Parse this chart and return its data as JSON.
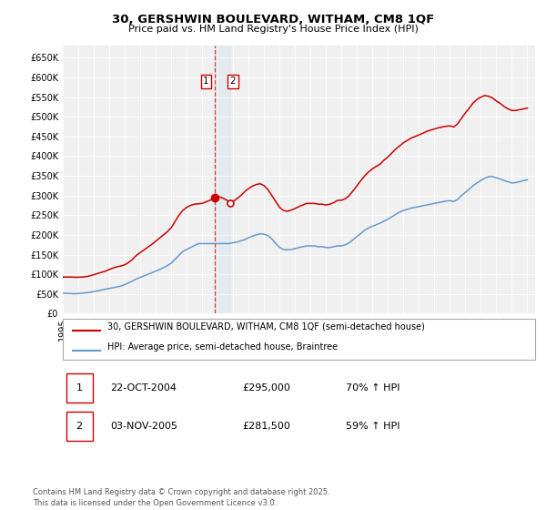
{
  "title": "30, GERSHWIN BOULEVARD, WITHAM, CM8 1QF",
  "subtitle": "Price paid vs. HM Land Registry's House Price Index (HPI)",
  "legend_line1": "30, GERSHWIN BOULEVARD, WITHAM, CM8 1QF (semi-detached house)",
  "legend_line2": "HPI: Average price, semi-detached house, Braintree",
  "property_color": "#cc0000",
  "hpi_color": "#6699cc",
  "table_rows": [
    {
      "num": "1",
      "date": "22-OCT-2004",
      "price": "£295,000",
      "hpi": "70% ↑ HPI"
    },
    {
      "num": "2",
      "date": "03-NOV-2005",
      "price": "£281,500",
      "hpi": "59% ↑ HPI"
    }
  ],
  "footer": "Contains HM Land Registry data © Crown copyright and database right 2025.\nThis data is licensed under the Open Government Licence v3.0.",
  "ylim": [
    0,
    680000
  ],
  "yticks": [
    0,
    50000,
    100000,
    150000,
    200000,
    250000,
    300000,
    350000,
    400000,
    450000,
    500000,
    550000,
    600000,
    650000
  ],
  "ytick_labels": [
    "£0",
    "£50K",
    "£100K",
    "£150K",
    "£200K",
    "£250K",
    "£300K",
    "£350K",
    "£400K",
    "£450K",
    "£500K",
    "£550K",
    "£600K",
    "£650K"
  ],
  "xlim_start": 1995.0,
  "xlim_end": 2025.5,
  "sale1_x": 2004.81,
  "sale1_y": 295000,
  "sale2_x": 2005.84,
  "sale2_y": 281500,
  "vshade_x1": 2004.81,
  "vshade_x2": 2005.84,
  "hpi_data": [
    [
      1995.0,
      52000
    ],
    [
      1995.25,
      51500
    ],
    [
      1995.5,
      51000
    ],
    [
      1995.75,
      50500
    ],
    [
      1996.0,
      51000
    ],
    [
      1996.25,
      52000
    ],
    [
      1996.5,
      53000
    ],
    [
      1996.75,
      54000
    ],
    [
      1997.0,
      56000
    ],
    [
      1997.25,
      58000
    ],
    [
      1997.5,
      60000
    ],
    [
      1997.75,
      62000
    ],
    [
      1998.0,
      64000
    ],
    [
      1998.25,
      66000
    ],
    [
      1998.5,
      68000
    ],
    [
      1998.75,
      70000
    ],
    [
      1999.0,
      74000
    ],
    [
      1999.25,
      78000
    ],
    [
      1999.5,
      83000
    ],
    [
      1999.75,
      88000
    ],
    [
      2000.0,
      92000
    ],
    [
      2000.25,
      96000
    ],
    [
      2000.5,
      100000
    ],
    [
      2000.75,
      104000
    ],
    [
      2001.0,
      108000
    ],
    [
      2001.25,
      112000
    ],
    [
      2001.5,
      117000
    ],
    [
      2001.75,
      122000
    ],
    [
      2002.0,
      128000
    ],
    [
      2002.25,
      138000
    ],
    [
      2002.5,
      148000
    ],
    [
      2002.75,
      158000
    ],
    [
      2003.0,
      163000
    ],
    [
      2003.25,
      168000
    ],
    [
      2003.5,
      173000
    ],
    [
      2003.75,
      178000
    ],
    [
      2004.0,
      178000
    ],
    [
      2004.25,
      178000
    ],
    [
      2004.5,
      178000
    ],
    [
      2004.75,
      178000
    ],
    [
      2005.0,
      178000
    ],
    [
      2005.25,
      178000
    ],
    [
      2005.5,
      178000
    ],
    [
      2005.75,
      178000
    ],
    [
      2006.0,
      180000
    ],
    [
      2006.25,
      182000
    ],
    [
      2006.5,
      185000
    ],
    [
      2006.75,
      188000
    ],
    [
      2007.0,
      193000
    ],
    [
      2007.25,
      197000
    ],
    [
      2007.5,
      200000
    ],
    [
      2007.75,
      203000
    ],
    [
      2008.0,
      202000
    ],
    [
      2008.25,
      198000
    ],
    [
      2008.5,
      190000
    ],
    [
      2008.75,
      178000
    ],
    [
      2009.0,
      168000
    ],
    [
      2009.25,
      163000
    ],
    [
      2009.5,
      162000
    ],
    [
      2009.75,
      163000
    ],
    [
      2010.0,
      165000
    ],
    [
      2010.25,
      168000
    ],
    [
      2010.5,
      170000
    ],
    [
      2010.75,
      172000
    ],
    [
      2011.0,
      172000
    ],
    [
      2011.25,
      172000
    ],
    [
      2011.5,
      170000
    ],
    [
      2011.75,
      170000
    ],
    [
      2012.0,
      168000
    ],
    [
      2012.25,
      168000
    ],
    [
      2012.5,
      170000
    ],
    [
      2012.75,
      172000
    ],
    [
      2013.0,
      172000
    ],
    [
      2013.25,
      175000
    ],
    [
      2013.5,
      180000
    ],
    [
      2013.75,
      188000
    ],
    [
      2014.0,
      196000
    ],
    [
      2014.25,
      204000
    ],
    [
      2014.5,
      212000
    ],
    [
      2014.75,
      218000
    ],
    [
      2015.0,
      222000
    ],
    [
      2015.25,
      226000
    ],
    [
      2015.5,
      230000
    ],
    [
      2015.75,
      235000
    ],
    [
      2016.0,
      240000
    ],
    [
      2016.25,
      246000
    ],
    [
      2016.5,
      252000
    ],
    [
      2016.75,
      258000
    ],
    [
      2017.0,
      262000
    ],
    [
      2017.25,
      265000
    ],
    [
      2017.5,
      268000
    ],
    [
      2017.75,
      270000
    ],
    [
      2018.0,
      272000
    ],
    [
      2018.25,
      274000
    ],
    [
      2018.5,
      276000
    ],
    [
      2018.75,
      278000
    ],
    [
      2019.0,
      280000
    ],
    [
      2019.25,
      282000
    ],
    [
      2019.5,
      284000
    ],
    [
      2019.75,
      286000
    ],
    [
      2020.0,
      287000
    ],
    [
      2020.25,
      285000
    ],
    [
      2020.5,
      290000
    ],
    [
      2020.75,
      300000
    ],
    [
      2021.0,
      308000
    ],
    [
      2021.25,
      316000
    ],
    [
      2021.5,
      325000
    ],
    [
      2021.75,
      332000
    ],
    [
      2022.0,
      338000
    ],
    [
      2022.25,
      344000
    ],
    [
      2022.5,
      348000
    ],
    [
      2022.75,
      348000
    ],
    [
      2023.0,
      345000
    ],
    [
      2023.25,
      342000
    ],
    [
      2023.5,
      338000
    ],
    [
      2023.75,
      335000
    ],
    [
      2024.0,
      332000
    ],
    [
      2024.25,
      333000
    ],
    [
      2024.5,
      335000
    ],
    [
      2024.75,
      338000
    ],
    [
      2025.0,
      340000
    ]
  ],
  "property_data": [
    [
      1995.0,
      93000
    ],
    [
      1995.25,
      93000
    ],
    [
      1995.5,
      93000
    ],
    [
      1995.75,
      92500
    ],
    [
      1996.0,
      92500
    ],
    [
      1996.25,
      93000
    ],
    [
      1996.5,
      94000
    ],
    [
      1996.75,
      96000
    ],
    [
      1997.0,
      99000
    ],
    [
      1997.25,
      102000
    ],
    [
      1997.5,
      105000
    ],
    [
      1997.75,
      108000
    ],
    [
      1998.0,
      112000
    ],
    [
      1998.25,
      116000
    ],
    [
      1998.5,
      119000
    ],
    [
      1998.75,
      121000
    ],
    [
      1999.0,
      124000
    ],
    [
      1999.25,
      130000
    ],
    [
      1999.5,
      138000
    ],
    [
      1999.75,
      148000
    ],
    [
      2000.0,
      155000
    ],
    [
      2000.25,
      162000
    ],
    [
      2000.5,
      169000
    ],
    [
      2000.75,
      176000
    ],
    [
      2001.0,
      184000
    ],
    [
      2001.25,
      192000
    ],
    [
      2001.5,
      200000
    ],
    [
      2001.75,
      208000
    ],
    [
      2002.0,
      218000
    ],
    [
      2002.25,
      234000
    ],
    [
      2002.5,
      250000
    ],
    [
      2002.75,
      262000
    ],
    [
      2003.0,
      270000
    ],
    [
      2003.25,
      275000
    ],
    [
      2003.5,
      278000
    ],
    [
      2003.75,
      279000
    ],
    [
      2004.0,
      280000
    ],
    [
      2004.25,
      284000
    ],
    [
      2004.5,
      288000
    ],
    [
      2004.75,
      292000
    ],
    [
      2004.81,
      295000
    ],
    [
      2005.0,
      298000
    ],
    [
      2005.25,
      295000
    ],
    [
      2005.5,
      290000
    ],
    [
      2005.75,
      285000
    ],
    [
      2005.84,
      281500
    ],
    [
      2006.0,
      285000
    ],
    [
      2006.25,
      292000
    ],
    [
      2006.5,
      300000
    ],
    [
      2006.75,
      310000
    ],
    [
      2007.0,
      318000
    ],
    [
      2007.25,
      324000
    ],
    [
      2007.5,
      328000
    ],
    [
      2007.75,
      330000
    ],
    [
      2008.0,
      325000
    ],
    [
      2008.25,
      315000
    ],
    [
      2008.5,
      300000
    ],
    [
      2008.75,
      285000
    ],
    [
      2009.0,
      270000
    ],
    [
      2009.25,
      262000
    ],
    [
      2009.5,
      260000
    ],
    [
      2009.75,
      263000
    ],
    [
      2010.0,
      267000
    ],
    [
      2010.25,
      272000
    ],
    [
      2010.5,
      276000
    ],
    [
      2010.75,
      280000
    ],
    [
      2011.0,
      280000
    ],
    [
      2011.25,
      280000
    ],
    [
      2011.5,
      278000
    ],
    [
      2011.75,
      278000
    ],
    [
      2012.0,
      276000
    ],
    [
      2012.25,
      278000
    ],
    [
      2012.5,
      282000
    ],
    [
      2012.75,
      288000
    ],
    [
      2013.0,
      288000
    ],
    [
      2013.25,
      292000
    ],
    [
      2013.5,
      300000
    ],
    [
      2013.75,
      312000
    ],
    [
      2014.0,
      325000
    ],
    [
      2014.25,
      338000
    ],
    [
      2014.5,
      350000
    ],
    [
      2014.75,
      360000
    ],
    [
      2015.0,
      368000
    ],
    [
      2015.25,
      374000
    ],
    [
      2015.5,
      380000
    ],
    [
      2015.75,
      390000
    ],
    [
      2016.0,
      398000
    ],
    [
      2016.25,
      408000
    ],
    [
      2016.5,
      418000
    ],
    [
      2016.75,
      426000
    ],
    [
      2017.0,
      434000
    ],
    [
      2017.25,
      440000
    ],
    [
      2017.5,
      446000
    ],
    [
      2017.75,
      450000
    ],
    [
      2018.0,
      454000
    ],
    [
      2018.25,
      458000
    ],
    [
      2018.5,
      463000
    ],
    [
      2018.75,
      466000
    ],
    [
      2019.0,
      469000
    ],
    [
      2019.25,
      472000
    ],
    [
      2019.5,
      474000
    ],
    [
      2019.75,
      476000
    ],
    [
      2020.0,
      477000
    ],
    [
      2020.25,
      474000
    ],
    [
      2020.5,
      482000
    ],
    [
      2020.75,
      496000
    ],
    [
      2021.0,
      510000
    ],
    [
      2021.25,
      522000
    ],
    [
      2021.5,
      535000
    ],
    [
      2021.75,
      544000
    ],
    [
      2022.0,
      550000
    ],
    [
      2022.25,
      554000
    ],
    [
      2022.5,
      552000
    ],
    [
      2022.75,
      548000
    ],
    [
      2023.0,
      540000
    ],
    [
      2023.25,
      534000
    ],
    [
      2023.5,
      526000
    ],
    [
      2023.75,
      520000
    ],
    [
      2024.0,
      516000
    ],
    [
      2024.25,
      516000
    ],
    [
      2024.5,
      518000
    ],
    [
      2024.75,
      520000
    ],
    [
      2025.0,
      522000
    ]
  ]
}
